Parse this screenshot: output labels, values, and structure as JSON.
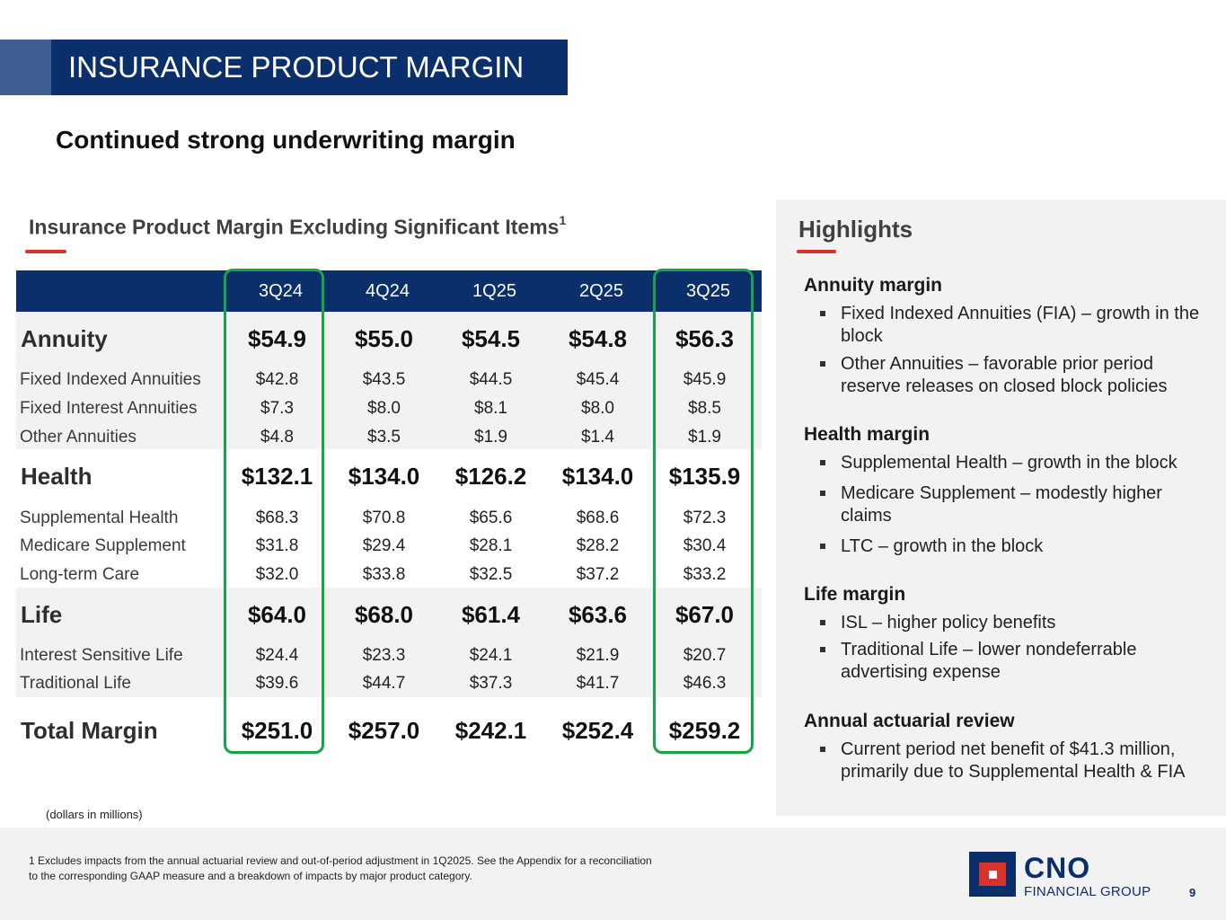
{
  "header": {
    "title": "INSURANCE PRODUCT MARGIN"
  },
  "subtitle": "Continued strong underwriting margin",
  "table": {
    "title": "Insurance Product Margin Excluding Significant Items",
    "title_footnote": "1",
    "columns": [
      "3Q24",
      "4Q24",
      "1Q25",
      "2Q25",
      "3Q25"
    ],
    "rows": [
      {
        "label": "Annuity",
        "values": [
          "$54.9",
          "$55.0",
          "$54.5",
          "$54.8",
          "$56.3"
        ]
      },
      {
        "label": "Fixed Indexed Annuities",
        "values": [
          "$42.8",
          "$43.5",
          "$44.5",
          "$45.4",
          "$45.9"
        ]
      },
      {
        "label": "Fixed Interest Annuities",
        "values": [
          "$7.3",
          "$8.0",
          "$8.1",
          "$8.0",
          "$8.5"
        ]
      },
      {
        "label": "Other Annuities",
        "values": [
          "$4.8",
          "$3.5",
          "$1.9",
          "$1.4",
          "$1.9"
        ]
      },
      {
        "label": "Health",
        "values": [
          "$132.1",
          "$134.0",
          "$126.2",
          "$134.0",
          "$135.9"
        ]
      },
      {
        "label": "Supplemental Health",
        "values": [
          "$68.3",
          "$70.8",
          "$65.6",
          "$68.6",
          "$72.3"
        ]
      },
      {
        "label": "Medicare Supplement",
        "values": [
          "$31.8",
          "$29.4",
          "$28.1",
          "$28.2",
          "$30.4"
        ]
      },
      {
        "label": "Long-term Care",
        "values": [
          "$32.0",
          "$33.8",
          "$32.5",
          "$37.2",
          "$33.2"
        ]
      },
      {
        "label": "Life",
        "values": [
          "$64.0",
          "$68.0",
          "$61.4",
          "$63.6",
          "$67.0"
        ]
      },
      {
        "label": "Interest Sensitive Life",
        "values": [
          "$24.4",
          "$23.3",
          "$24.1",
          "$21.9",
          "$20.7"
        ]
      },
      {
        "label": "Traditional Life",
        "values": [
          "$39.6",
          "$44.7",
          "$37.3",
          "$41.7",
          "$46.3"
        ]
      },
      {
        "label": "Total Margin",
        "values": [
          "$251.0",
          "$257.0",
          "$242.1",
          "$252.4",
          "$259.2"
        ]
      }
    ],
    "units_note": "(dollars in millions)"
  },
  "highlights": {
    "title": "Highlights",
    "sections": [
      {
        "heading": "Annuity margin",
        "bullets": [
          "Fixed Indexed Annuities (FIA) – growth in the block",
          "Other Annuities – favorable prior period reserve releases on closed block policies"
        ]
      },
      {
        "heading": "Health margin",
        "bullets": [
          "Supplemental Health – growth in the block",
          "Medicare Supplement – modestly higher claims",
          "LTC – growth in the block"
        ]
      },
      {
        "heading": "Life margin",
        "bullets": [
          "ISL – higher policy benefits",
          "Traditional Life – lower nondeferrable advertising expense"
        ]
      },
      {
        "heading": "Annual actuarial review",
        "bullets": [
          "Current period net benefit of $41.3 million, primarily due to Supplemental Health & FIA"
        ]
      }
    ]
  },
  "footer": {
    "footnote": "1 Excludes impacts from the annual actuarial review and out-of-period adjustment in 1Q2025. See the Appendix for a reconciliation to the corresponding GAAP measure and a breakdown of impacts by major product category.",
    "logo_name": "CNO",
    "logo_sub": "FINANCIAL GROUP",
    "page_number": "9"
  },
  "colors": {
    "navy": "#0b2f6b",
    "accent_red": "#d9342b",
    "highlight_green": "#16a34a",
    "panel_gray": "#f2f2f2"
  }
}
